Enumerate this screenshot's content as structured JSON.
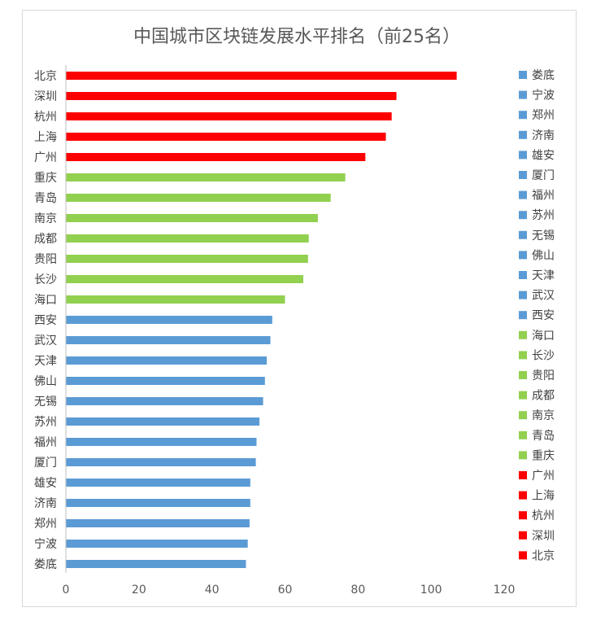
{
  "chart_data": {
    "type": "bar",
    "orientation": "horizontal",
    "title": "中国城市区块链发展水平排名（前25名）",
    "categories": [
      "北京",
      "深圳",
      "杭州",
      "上海",
      "广州",
      "重庆",
      "青岛",
      "南京",
      "成都",
      "贵阳",
      "长沙",
      "海口",
      "西安",
      "武汉",
      "天津",
      "佛山",
      "无锡",
      "苏州",
      "福州",
      "厦门",
      "雄安",
      "济南",
      "郑州",
      "宁波",
      "娄底"
    ],
    "values": [
      107,
      90.5,
      89.2,
      87.6,
      82,
      76.5,
      72.5,
      69,
      66.5,
      66.3,
      65,
      60,
      56.5,
      56,
      55,
      54.5,
      54,
      53,
      52.2,
      52,
      50.5,
      50.5,
      50.3,
      49.8,
      49.3
    ],
    "colors": [
      "#ff0000",
      "#ff0000",
      "#ff0000",
      "#ff0000",
      "#ff0000",
      "#92d050",
      "#92d050",
      "#92d050",
      "#92d050",
      "#92d050",
      "#92d050",
      "#92d050",
      "#5b9bd5",
      "#5b9bd5",
      "#5b9bd5",
      "#5b9bd5",
      "#5b9bd5",
      "#5b9bd5",
      "#5b9bd5",
      "#5b9bd5",
      "#5b9bd5",
      "#5b9bd5",
      "#5b9bd5",
      "#5b9bd5",
      "#5b9bd5"
    ],
    "xlim": [
      0,
      120
    ],
    "xticks": [
      "0",
      "20",
      "40",
      "60",
      "80",
      "100",
      "120"
    ],
    "grid": false,
    "legend_placement": "right"
  },
  "legend": {
    "items": [
      {
        "label": "娄底",
        "color": "#5b9bd5"
      },
      {
        "label": "宁波",
        "color": "#5b9bd5"
      },
      {
        "label": "郑州",
        "color": "#5b9bd5"
      },
      {
        "label": "济南",
        "color": "#5b9bd5"
      },
      {
        "label": "雄安",
        "color": "#5b9bd5"
      },
      {
        "label": "厦门",
        "color": "#5b9bd5"
      },
      {
        "label": "福州",
        "color": "#5b9bd5"
      },
      {
        "label": "苏州",
        "color": "#5b9bd5"
      },
      {
        "label": "无锡",
        "color": "#5b9bd5"
      },
      {
        "label": "佛山",
        "color": "#5b9bd5"
      },
      {
        "label": "天津",
        "color": "#5b9bd5"
      },
      {
        "label": "武汉",
        "color": "#5b9bd5"
      },
      {
        "label": "西安",
        "color": "#5b9bd5"
      },
      {
        "label": "海口",
        "color": "#92d050"
      },
      {
        "label": "长沙",
        "color": "#92d050"
      },
      {
        "label": "贵阳",
        "color": "#92d050"
      },
      {
        "label": "成都",
        "color": "#92d050"
      },
      {
        "label": "南京",
        "color": "#92d050"
      },
      {
        "label": "青岛",
        "color": "#92d050"
      },
      {
        "label": "重庆",
        "color": "#92d050"
      },
      {
        "label": "广州",
        "color": "#ff0000"
      },
      {
        "label": "上海",
        "color": "#ff0000"
      },
      {
        "label": "杭州",
        "color": "#ff0000"
      },
      {
        "label": "深圳",
        "color": "#ff0000"
      },
      {
        "label": "北京",
        "color": "#ff0000"
      }
    ]
  }
}
